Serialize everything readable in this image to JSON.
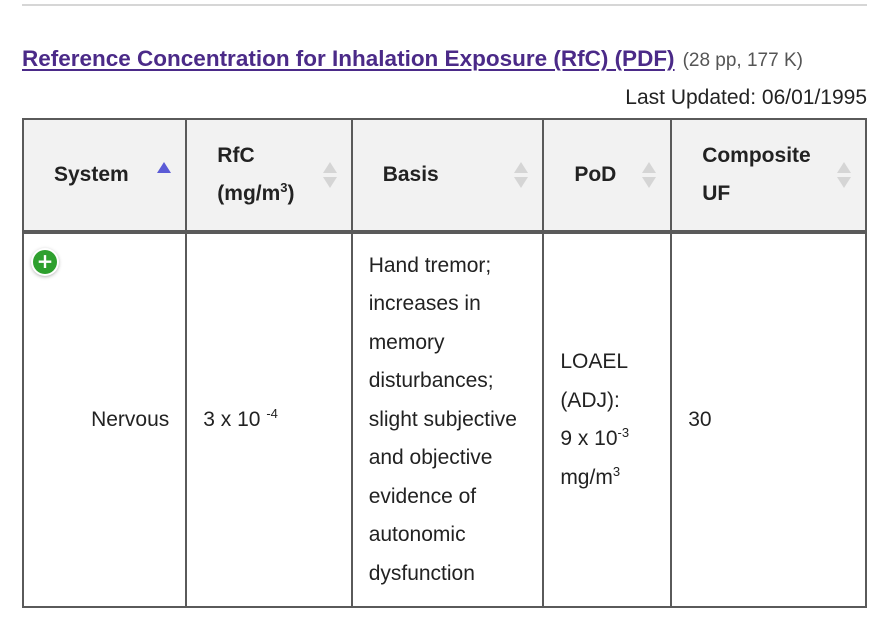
{
  "header": {
    "link_text": "Reference Concentration for Inhalation Exposure (RfC) (PDF)",
    "meta": "(28 pp, 177 K)",
    "last_updated": "Last Updated: 06/01/1995"
  },
  "table": {
    "columns": {
      "system": "System",
      "rfc_line1": "RfC",
      "rfc_unit_base": "(mg/m",
      "rfc_unit_exp": "3",
      "rfc_unit_close": ")",
      "basis": "Basis",
      "pod": "PoD",
      "composite_line1": "Composite",
      "composite_line2": "UF"
    },
    "sorted_column": "System",
    "row": {
      "expand_glyph": "+",
      "system": "Nervous",
      "rfc_base": "3 x 10",
      "rfc_exp": "-4",
      "basis_lines": [
        "Hand tremor;",
        "increases in",
        "memory",
        "disturbances;",
        "slight subjective",
        "and objective",
        "evidence of",
        "autonomic",
        "dysfunction"
      ],
      "pod": {
        "line1": "LOAEL",
        "line2": "(ADJ):",
        "line3_base": "9 x 10",
        "line3_exp": "-3",
        "line4_base": "mg/m",
        "line4_exp": "3"
      },
      "composite_uf": "30"
    }
  },
  "colors": {
    "link": "#4b2a88",
    "header_bg": "#f2f2f2",
    "border": "#5a5a5a",
    "sort_active": "#5b5bd6",
    "sort_inactive": "#d5d5d5",
    "expand_button": "#2ea02e"
  }
}
